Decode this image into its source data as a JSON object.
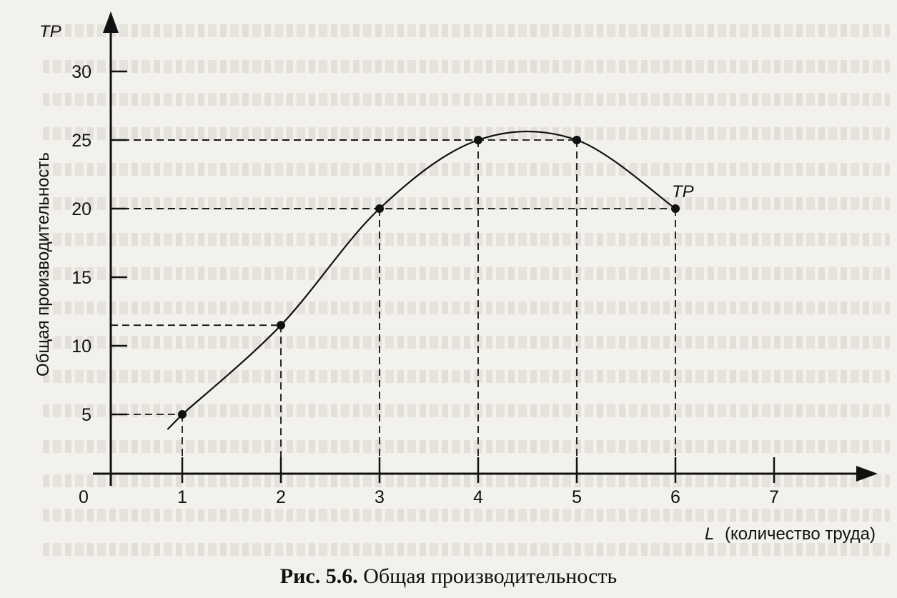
{
  "caption": {
    "label": "Рис. 5.6.",
    "text": "Общая производительность"
  },
  "chart_data": {
    "type": "line",
    "title": "",
    "ylabel": "Общая производительность",
    "y_axis_symbol": "TP",
    "xlabel_symbol": "L",
    "xlabel_text": "(количество труда)",
    "series_label": "TP",
    "origin_label": "0",
    "xlim": [
      0,
      7.7
    ],
    "ylim": [
      0,
      32.5
    ],
    "x_ticks": [
      1,
      2,
      3,
      4,
      5,
      6,
      7
    ],
    "y_ticks": [
      5,
      10,
      15,
      20,
      25,
      30
    ],
    "x_tick_labels": [
      "1",
      "2",
      "3",
      "4",
      "5",
      "6",
      "7"
    ],
    "y_tick_labels": [
      "5",
      "10",
      "15",
      "20",
      "25",
      "30"
    ],
    "series": [
      {
        "name": "TP",
        "points": [
          {
            "x": 1,
            "y": 5
          },
          {
            "x": 2,
            "y": 11.5
          },
          {
            "x": 3,
            "y": 20
          },
          {
            "x": 4,
            "y": 25
          },
          {
            "x": 5,
            "y": 25
          },
          {
            "x": 6,
            "y": 20
          }
        ]
      }
    ],
    "grid": false
  }
}
